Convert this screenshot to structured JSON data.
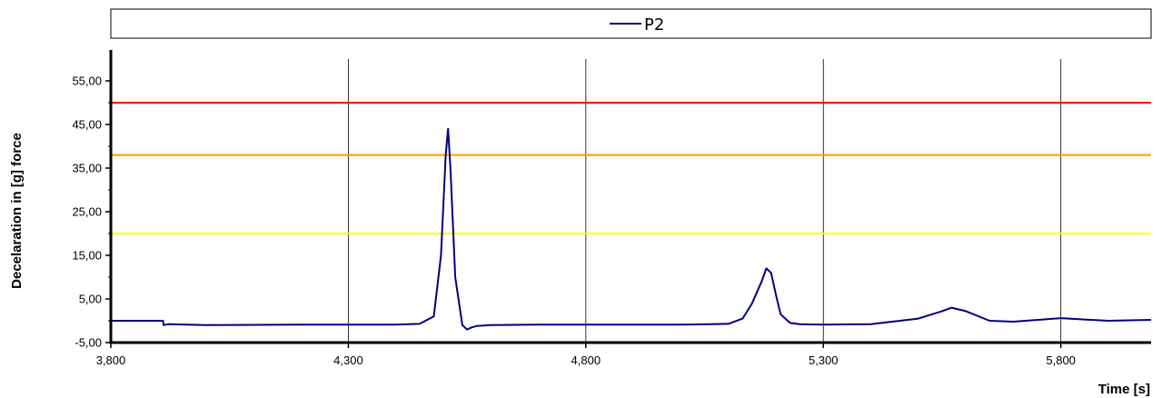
{
  "chart_data": {
    "type": "line",
    "xlabel": "Time [s]",
    "ylabel": "Decelaration in [g]  force",
    "xlim": [
      3.8,
      5.99
    ],
    "ylim": [
      -5,
      60
    ],
    "x_ticks": [
      3.8,
      4.3,
      4.8,
      5.3,
      5.8
    ],
    "x_tick_labels": [
      "3,800",
      "4,300",
      "4,800",
      "5,300",
      "5,800"
    ],
    "y_ticks": [
      -5,
      5,
      15,
      25,
      35,
      45,
      55
    ],
    "y_tick_labels": [
      "-5,00",
      "5,00",
      "15,00",
      "25,00",
      "35,00",
      "45,00",
      "55,00"
    ],
    "grid": "vertical",
    "legend": {
      "position": "top",
      "entries": [
        "P2"
      ]
    },
    "threshold_lines": [
      {
        "value": 50,
        "color": "#ff0000"
      },
      {
        "value": 38,
        "color": "#ff9900"
      },
      {
        "value": 20,
        "color": "#ffff00"
      }
    ],
    "series": [
      {
        "name": "P2",
        "color": "#000080",
        "x": [
          3.8,
          3.91,
          3.911,
          3.92,
          4.0,
          4.2,
          4.4,
          4.45,
          4.48,
          4.495,
          4.505,
          4.51,
          4.515,
          4.525,
          4.54,
          4.55,
          4.56,
          4.57,
          4.6,
          4.7,
          4.8,
          5.0,
          5.1,
          5.13,
          5.15,
          5.17,
          5.18,
          5.19,
          5.2,
          5.21,
          5.23,
          5.25,
          5.3,
          5.4,
          5.5,
          5.55,
          5.57,
          5.6,
          5.65,
          5.7,
          5.8,
          5.85,
          5.9,
          5.99
        ],
        "y": [
          0,
          0,
          -1,
          -0.8,
          -1,
          -0.9,
          -0.9,
          -0.7,
          1,
          15,
          38,
          44,
          35,
          10,
          -1,
          -2,
          -1.5,
          -1.2,
          -1,
          -0.9,
          -0.9,
          -0.9,
          -0.7,
          0.5,
          4,
          9,
          12,
          11,
          6,
          1.5,
          -0.5,
          -0.8,
          -0.9,
          -0.8,
          0.5,
          2.2,
          3,
          2.2,
          0,
          -0.2,
          0.6,
          0.3,
          0,
          0.2
        ]
      }
    ]
  }
}
